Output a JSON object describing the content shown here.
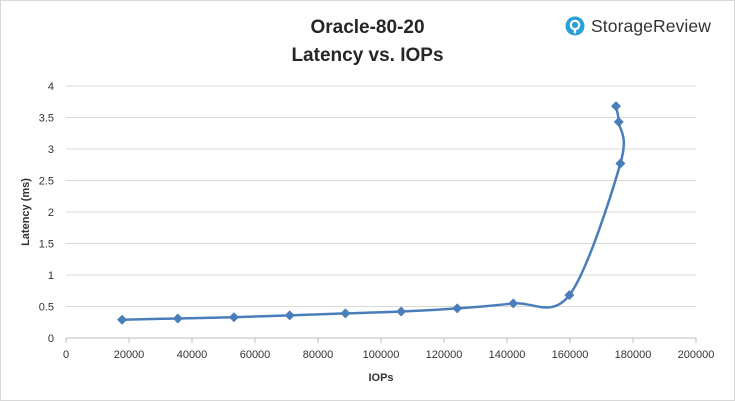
{
  "chart_data": {
    "type": "scatter",
    "title": "Oracle-80-20",
    "subtitle": "Latency vs. IOPs",
    "xlabel": "IOPs",
    "ylabel": "Latency (ms)",
    "xlim": [
      0,
      200000
    ],
    "ylim": [
      0,
      4
    ],
    "x_ticks": [
      0,
      20000,
      40000,
      60000,
      80000,
      100000,
      120000,
      140000,
      160000,
      180000,
      200000
    ],
    "x_tick_labels": [
      "0",
      "20000",
      "40000",
      "60000",
      "80000",
      "100000",
      "120000",
      "140000",
      "160000",
      "180000",
      "200000"
    ],
    "y_ticks": [
      0,
      0.5,
      1,
      1.5,
      2,
      2.5,
      3,
      3.5,
      4
    ],
    "y_tick_labels": [
      "0",
      "0.5",
      "1",
      "1.5",
      "2",
      "2.5",
      "3",
      "3.5",
      "4"
    ],
    "grid": true,
    "line": "smooth",
    "marker": "diamond",
    "series": [
      {
        "color": "#4a7ebb",
        "points": [
          [
            17800,
            0.29
          ],
          [
            35500,
            0.31
          ],
          [
            53300,
            0.33
          ],
          [
            71000,
            0.36
          ],
          [
            88700,
            0.39
          ],
          [
            106400,
            0.42
          ],
          [
            124200,
            0.47
          ],
          [
            142000,
            0.55
          ],
          [
            159800,
            0.68
          ],
          [
            176000,
            2.77
          ],
          [
            175500,
            3.43
          ],
          [
            174600,
            3.68
          ]
        ]
      }
    ]
  },
  "brand": {
    "name": "StorageReview",
    "logo_icon": "storagereview-logo-icon",
    "logo_color": "#2a9fd8"
  }
}
